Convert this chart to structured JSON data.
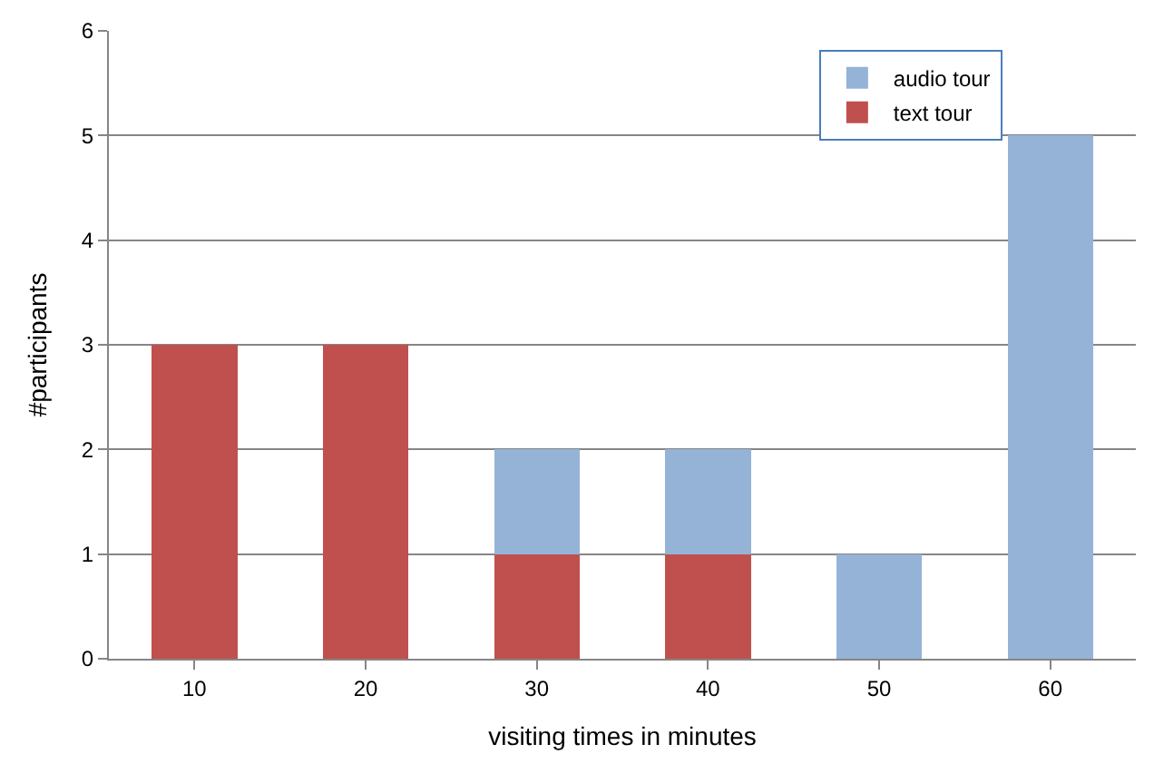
{
  "chart_data": {
    "type": "bar",
    "stacked": true,
    "xlabel": "visiting times in minutes",
    "ylabel": "#participants",
    "categories": [
      "10",
      "20",
      "30",
      "40",
      "50",
      "60"
    ],
    "series": [
      {
        "name": "text tour",
        "color": "#c0504d",
        "values": [
          3,
          3,
          1,
          1,
          0,
          0
        ]
      },
      {
        "name": "audio tour",
        "color": "#95b3d7",
        "values": [
          0,
          0,
          1,
          1,
          1,
          5
        ]
      }
    ],
    "ylim": [
      0,
      6
    ],
    "yticks": [
      0,
      1,
      2,
      3,
      4,
      5,
      6
    ],
    "grid": "y",
    "legend": "top right"
  }
}
